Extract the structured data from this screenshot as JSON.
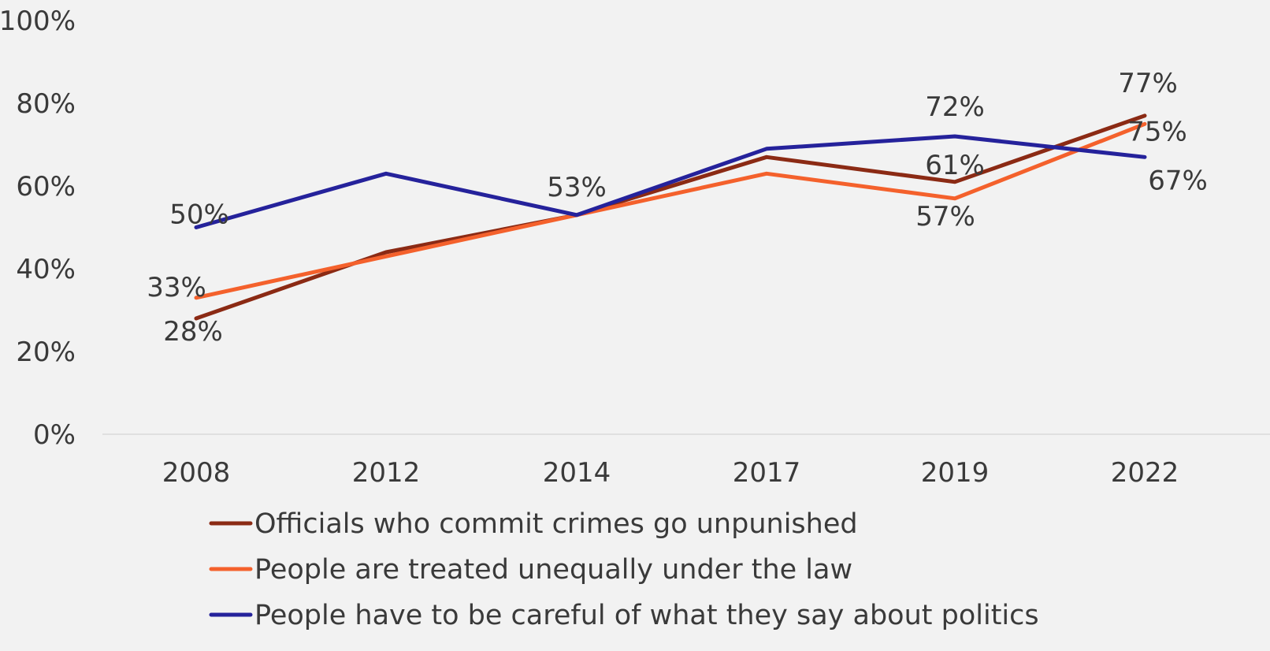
{
  "chart_data": {
    "type": "line",
    "categories": [
      "2008",
      "2012",
      "2014",
      "2017",
      "2019",
      "2022"
    ],
    "ylim": [
      0,
      100
    ],
    "yticks": [
      0,
      20,
      40,
      60,
      80,
      100
    ],
    "ytick_labels": [
      "0%",
      "20%",
      "40%",
      "60%",
      "80%",
      "100%"
    ],
    "grid": false,
    "legend_placement": "bottom",
    "series": [
      {
        "name": "Officials who commit crimes go unpunished",
        "color": "#8b2a14",
        "values": [
          28,
          44,
          53,
          67,
          61,
          77
        ],
        "data_labels": {
          "0": "28%",
          "4": "61%",
          "5": "77%"
        }
      },
      {
        "name": "People are treated unequally under the law",
        "color": "#f4612c",
        "values": [
          33,
          43,
          53,
          63,
          57,
          75
        ],
        "data_labels": {
          "0": "33%",
          "4": "57%",
          "5": "75%"
        }
      },
      {
        "name": "People have to be careful of what they say about politics",
        "color": "#25229b",
        "values": [
          50,
          63,
          53,
          69,
          72,
          67
        ],
        "data_labels": {
          "0": "50%",
          "2": "53%",
          "4": "72%",
          "5": "67%"
        }
      }
    ]
  }
}
